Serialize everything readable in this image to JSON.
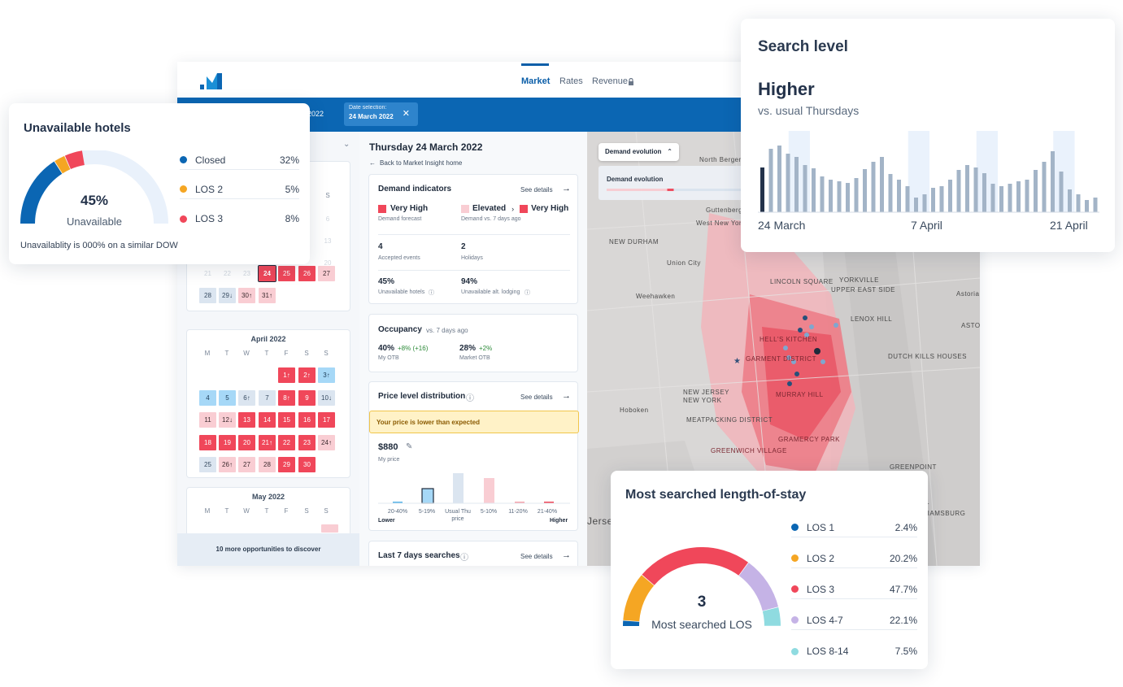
{
  "nav": {
    "tabs": [
      "Market",
      "Rates",
      "Revenue"
    ]
  },
  "bluebar": {
    "date_fragment": "y 2022",
    "chip_label": "Date selection:",
    "chip_value": "24 March 2022"
  },
  "left_panel": {
    "col_s": "S",
    "march_rows": [
      [
        "21",
        "22",
        "23",
        "24",
        "25",
        "26",
        "27"
      ],
      [
        "28",
        "29↓",
        "30↑",
        "31↑"
      ]
    ],
    "faded_rows": [
      "6",
      "13",
      "20"
    ],
    "april": {
      "title": "April 2022",
      "dows": [
        "M",
        "T",
        "W",
        "T",
        "F",
        "S",
        "S"
      ],
      "days": [
        [
          "",
          "",
          "",
          "",
          "1↑",
          "2↑",
          "3↑"
        ],
        [
          "4",
          "5",
          "6↑",
          "7",
          "8↑",
          "9",
          "10↓"
        ],
        [
          "11",
          "12↓",
          "13",
          "14",
          "15",
          "16",
          "17"
        ],
        [
          "18",
          "19",
          "20",
          "21↑",
          "22",
          "23",
          "24↑"
        ],
        [
          "25",
          "26↑",
          "27",
          "28",
          "29",
          "30",
          ""
        ]
      ]
    },
    "may": {
      "title": "May 2022",
      "dows": [
        "M",
        "T",
        "W",
        "T",
        "F",
        "S",
        "S"
      ]
    },
    "discover": "10 more opportunities to discover"
  },
  "mid": {
    "date_title": "Thursday 24 March 2022",
    "back": "Back to Market Insight home",
    "demand": {
      "title": "Demand indicators",
      "see": "See details",
      "forecast_value": "Very High",
      "forecast_label": "Demand forecast",
      "prev": "Elevated",
      "now": "Very High",
      "vs_label": "Demand vs. 7 days ago",
      "events_value": "4",
      "events_label": "Accepted events",
      "holidays_value": "2",
      "holidays_label": "Holidays",
      "unavail_value": "45%",
      "unavail_label": "Unavailable hotels",
      "alt_value": "94%",
      "alt_label": "Unavailable alt. lodging"
    },
    "occupancy": {
      "title": "Occupancy",
      "sub": "vs. 7 days ago",
      "my_value": "40%",
      "my_delta": "+8% (+16)",
      "my_label": "My OTB",
      "market_value": "28%",
      "market_delta": "+2%",
      "market_label": "Market OTB"
    },
    "price": {
      "title": "Price level distribution",
      "see": "See details",
      "warning": "Your price is lower than expected",
      "price": "$880",
      "price_label": "My price",
      "bins": [
        "20-40%",
        "5-19%",
        "Usual Thu price",
        "5-10%",
        "11-20%",
        "21-40%"
      ],
      "lower": "Lower",
      "higher": "Higher"
    },
    "searches": {
      "title": "Last 7 days searches",
      "see": "See details"
    }
  },
  "map": {
    "dropdown": "Demand evolution",
    "panel_title": "Demand evolution",
    "labels": [
      "North Bergen",
      "Guttenberg",
      "West New York",
      "NEW DURHAM",
      "Union City",
      "Weehawken",
      "HELL'S KITCHEN",
      "LINCOLN SQUARE",
      "UPPER EAST SIDE",
      "YORKVILLE",
      "LENOX HILL",
      "GARMENT DISTRICT",
      "MURRAY HILL",
      "NEW JERSEY",
      "NEW YORK",
      "DUTCH KILLS HOUSES",
      "Hoboken",
      "MEATPACKING DISTRICT",
      "GRAMERCY PARK",
      "GREENWICH VILLAGE",
      "GREENPOINT",
      "EAST WILLIAMSBURG",
      "Jersey",
      "Astoria",
      "ASTO"
    ]
  },
  "unavailable": {
    "title": "Unavailable hotels",
    "percent": "45%",
    "label": "Unavailable",
    "footer": "Unavailablity is 000% on a similar DOW",
    "items": [
      {
        "name": "Closed",
        "value": "32%",
        "color": "#0b66b3"
      },
      {
        "name": "LOS 2",
        "value": "5%",
        "color": "#f5a623"
      },
      {
        "name": "LOS 3",
        "value": "8%",
        "color": "#f0475a"
      }
    ]
  },
  "search": {
    "title": "Search level",
    "level": "Higher",
    "sub": "vs. usual Thursdays",
    "x_labels": [
      "24 March",
      "7 April",
      "21 April"
    ],
    "chart_data": {
      "type": "bar",
      "values": [
        55,
        78,
        82,
        72,
        68,
        58,
        54,
        44,
        40,
        38,
        36,
        42,
        53,
        62,
        68,
        47,
        40,
        32,
        18,
        22,
        30,
        32,
        40,
        52,
        58,
        55,
        48,
        35,
        32,
        35,
        38,
        40,
        52,
        62,
        75,
        50,
        28,
        22,
        15,
        18
      ],
      "highlight": [
        0,
        4,
        18,
        26,
        35
      ]
    }
  },
  "los": {
    "title": "Most searched length-of-stay",
    "value": "3",
    "label": "Most searched LOS",
    "items": [
      {
        "name": "LOS 1",
        "value": "2.4%",
        "color": "#0b66b3"
      },
      {
        "name": "LOS 2",
        "value": "20.2%",
        "color": "#f5a623"
      },
      {
        "name": "LOS 3",
        "value": "47.7%",
        "color": "#f0475a"
      },
      {
        "name": "LOS 4-7",
        "value": "22.1%",
        "color": "#c5b3e6"
      },
      {
        "name": "LOS 8-14",
        "value": "7.5%",
        "color": "#8fdbe0"
      }
    ]
  }
}
